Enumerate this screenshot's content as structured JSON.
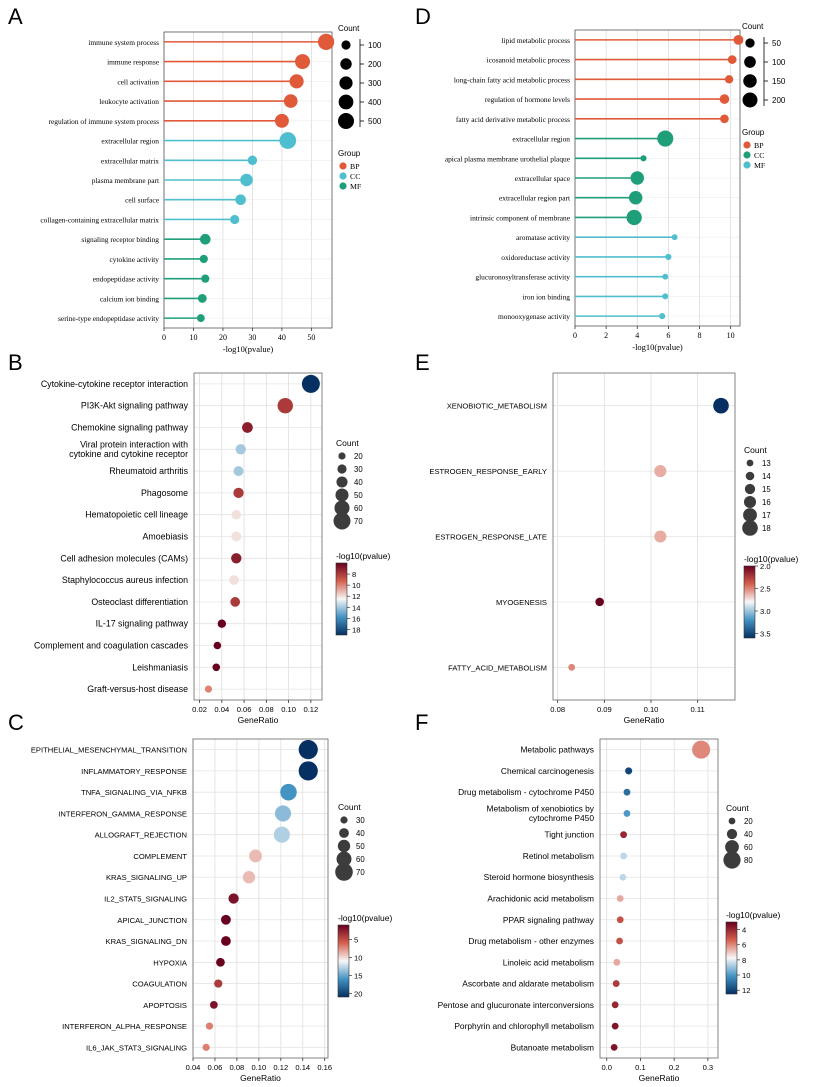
{
  "figure": {
    "panels": [
      "A",
      "B",
      "C",
      "D",
      "E",
      "F"
    ]
  },
  "chart_data": [
    {
      "panel": "A",
      "type": "lollipop",
      "xlabel": "-log10(pvalue)",
      "xlim": [
        0,
        57
      ],
      "xticks": [
        0,
        10,
        20,
        30,
        40,
        50
      ],
      "categories": [
        "immune system process",
        "immune response",
        "cell activation",
        "leukocyte activation",
        "regulation of immune system process",
        "extracellular region",
        "extracellular matrix",
        "plasma membrane part",
        "cell surface",
        "collagen-containing extracellular matrix",
        "signaling receptor binding",
        "cytokine activity",
        "endopeptidase activity",
        "calcium ion binding",
        "serine-type endopeptidase activity"
      ],
      "values": [
        55,
        47,
        45,
        43,
        40,
        42,
        30,
        28,
        26,
        24,
        14,
        13.5,
        14,
        13,
        12.5
      ],
      "count": [
        520,
        420,
        360,
        330,
        350,
        560,
        110,
        260,
        160,
        100,
        160,
        70,
        70,
        90,
        60
      ],
      "group": [
        "BP",
        "BP",
        "BP",
        "BP",
        "BP",
        "CC",
        "CC",
        "CC",
        "CC",
        "CC",
        "MF",
        "MF",
        "MF",
        "MF",
        "MF"
      ],
      "legend": {
        "count_title": "Count",
        "count_values": [
          100,
          200,
          300,
          400,
          500
        ],
        "group_title": "Group",
        "groups": [
          "BP",
          "CC",
          "MF"
        ],
        "group_colors": [
          "#e05a3a",
          "#4fbfcf",
          "#1f9e7a"
        ]
      }
    },
    {
      "panel": "D",
      "type": "lollipop",
      "xlabel": "-log10(pvalue)",
      "xlim": [
        0,
        10.6
      ],
      "xticks": [
        0,
        2,
        4,
        6,
        8,
        10
      ],
      "categories": [
        "lipid metabolic process",
        "icosanoid metabolic process",
        "long-chain fatty acid metabolic process",
        "regulation of hormone levels",
        "fatty acid derivative metabolic process",
        "extracellular region",
        "apical plasma membrane urothelial plaque",
        "extracellular space",
        "extracellular region part",
        "intrinsic component of membrane",
        "aromatase activity",
        "oxidoreductase activity",
        "glucuronosyltransferase activity",
        "iron ion binding",
        "monooxygenase activity"
      ],
      "values": [
        10.5,
        10.1,
        9.9,
        9.6,
        9.6,
        5.8,
        4.4,
        4.0,
        3.9,
        3.8,
        6.4,
        6.0,
        5.8,
        5.8,
        5.6
      ],
      "count": [
        60,
        40,
        35,
        55,
        40,
        240,
        10,
        150,
        150,
        210,
        8,
        10,
        8,
        9,
        10
      ],
      "group": [
        "BP",
        "BP",
        "BP",
        "BP",
        "BP",
        "CC",
        "CC",
        "CC",
        "CC",
        "CC",
        "MF",
        "MF",
        "MF",
        "MF",
        "MF"
      ],
      "legend": {
        "count_title": "Count",
        "count_values": [
          50,
          100,
          150,
          200
        ],
        "group_title": "Group",
        "groups": [
          "BP",
          "CC",
          "MF"
        ],
        "group_colors": [
          "#e05a3a",
          "#1f9e7a",
          "#4fbfcf"
        ]
      }
    },
    {
      "panel": "B",
      "type": "scatter",
      "xlabel": "GeneRatio",
      "xlim": [
        0.015,
        0.13
      ],
      "xticks": [
        0.02,
        0.04,
        0.06,
        0.08,
        0.1,
        0.12
      ],
      "xtick_labels": [
        "0.02",
        "0.04",
        "0.06",
        "0.08",
        "0.10",
        "0.12"
      ],
      "categories": [
        "Cytokine-cytokine receptor interaction",
        "PI3K-Akt signaling pathway",
        "Chemokine signaling pathway",
        "Viral protein interaction with\ncytokine and cytokine receptor",
        "Rheumatoid arthritis",
        "Phagosome",
        "Hematopoietic cell lineage",
        "Amoebiasis",
        "Cell adhesion molecules (CAMs)",
        "Staphylococcus aureus infection",
        "Osteoclast differentiation",
        "IL-17 signaling pathway",
        "Complement and coagulation cascades",
        "Leishmaniasis",
        "Graft-versus-host disease"
      ],
      "values": [
        0.12,
        0.097,
        0.063,
        0.057,
        0.055,
        0.055,
        0.053,
        0.053,
        0.053,
        0.051,
        0.052,
        0.04,
        0.036,
        0.035,
        0.028
      ],
      "count": [
        75,
        62,
        38,
        36,
        34,
        36,
        32,
        34,
        36,
        33,
        33,
        26,
        22,
        22,
        18
      ],
      "color_value": [
        19,
        8,
        7,
        14,
        14,
        8,
        12,
        12,
        7,
        12,
        8,
        6,
        6,
        6,
        10
      ],
      "legend": {
        "count_title": "Count",
        "count_values": [
          20,
          30,
          40,
          50,
          60,
          70
        ],
        "color_title": "-log10(pvalue)",
        "color_range": [
          6,
          19
        ],
        "color_ticks": [
          8,
          10,
          12,
          14,
          16,
          18
        ]
      }
    },
    {
      "panel": "E",
      "type": "scatter",
      "xlabel": "GeneRatio",
      "xlim": [
        0.079,
        0.118
      ],
      "xticks": [
        0.08,
        0.09,
        0.1,
        0.11
      ],
      "xtick_labels": [
        "0.08",
        "0.09",
        "0.10",
        "0.11"
      ],
      "categories": [
        "XENOBIOTIC_METABOLISM",
        "ESTROGEN_RESPONSE_EARLY",
        "ESTROGEN_RESPONSE_LATE",
        "MYOGENESIS",
        "FATTY_ACID_METABOLISM"
      ],
      "values": [
        0.115,
        0.102,
        0.102,
        0.089,
        0.083
      ],
      "count": [
        18,
        16,
        16,
        14,
        13
      ],
      "color_value": [
        3.6,
        2.6,
        2.6,
        2.0,
        2.5
      ],
      "legend": {
        "count_title": "Count",
        "count_values": [
          13,
          14,
          15,
          16,
          17,
          18
        ],
        "color_title": "-log10(pvalue)",
        "color_range": [
          2.0,
          3.6
        ],
        "color_ticks": [
          2.0,
          2.5,
          3.0,
          3.5
        ],
        "color_tick_labels": [
          "2.0",
          "2.5",
          "3.0",
          "3.5"
        ]
      }
    },
    {
      "panel": "C",
      "type": "scatter",
      "xlabel": "GeneRatio",
      "xlim": [
        0.04,
        0.163
      ],
      "xticks": [
        0.04,
        0.06,
        0.08,
        0.1,
        0.12,
        0.14,
        0.16
      ],
      "xtick_labels": [
        "0.04",
        "0.06",
        "0.08",
        "0.10",
        "0.12",
        "0.14",
        "0.16"
      ],
      "categories": [
        "EPITHELIAL_MESENCHYMAL_TRANSITION",
        "INFLAMMATORY_RESPONSE",
        "TNFA_SIGNALING_VIA_NFKB",
        "INTERFERON_GAMMA_RESPONSE",
        "ALLOGRAFT_REJECTION",
        "COMPLEMENT",
        "KRAS_SIGNALING_UP",
        "IL2_STAT5_SIGNALING",
        "APICAL_JUNCTION",
        "KRAS_SIGNALING_DN",
        "HYPOXIA",
        "COAGULATION",
        "APOPTOSIS",
        "INTERFERON_ALPHA_RESPONSE",
        "IL6_JAK_STAT3_SIGNALING"
      ],
      "values": [
        0.145,
        0.145,
        0.127,
        0.122,
        0.121,
        0.097,
        0.091,
        0.077,
        0.07,
        0.07,
        0.065,
        0.063,
        0.059,
        0.055,
        0.052
      ],
      "count": [
        78,
        78,
        66,
        64,
        64,
        52,
        50,
        42,
        40,
        40,
        36,
        34,
        32,
        30,
        29
      ],
      "color_value": [
        21,
        21,
        16,
        14,
        13,
        9,
        9,
        2,
        1,
        1,
        1,
        4,
        2,
        7,
        7
      ],
      "legend": {
        "count_title": "Count",
        "count_values": [
          30,
          40,
          50,
          60,
          70
        ],
        "color_title": "-log10(pvalue)",
        "color_range": [
          1,
          21
        ],
        "color_ticks": [
          5,
          10,
          15,
          20
        ]
      }
    },
    {
      "panel": "F",
      "type": "scatter",
      "xlabel": "GeneRatio",
      "xlim": [
        -0.02,
        0.33
      ],
      "xticks": [
        0.0,
        0.1,
        0.2,
        0.3
      ],
      "xtick_labels": [
        "0.0",
        "0.1",
        "0.2",
        "0.3"
      ],
      "categories": [
        "Metabolic pathways",
        "Chemical carcinogenesis",
        "Drug metabolism - cytochrome P450",
        "Metabolism of xenobiotics by\ncytochrome P450",
        "Tight junction",
        "Retinol metabolism",
        "Steroid hormone biosynthesis",
        "Arachidonic acid metabolism",
        "PPAR signaling pathway",
        "Drug metabolism - other enzymes",
        "Linoleic acid metabolism",
        "Ascorbate and aldarate metabolism",
        "Pentose and glucuronate interconversions",
        "Porphyrin and chlorophyll metabolism",
        "Butanoate metabolism"
      ],
      "values": [
        0.28,
        0.065,
        0.06,
        0.06,
        0.05,
        0.05,
        0.048,
        0.04,
        0.04,
        0.038,
        0.03,
        0.028,
        0.025,
        0.025,
        0.022
      ],
      "count": [
        85,
        22,
        20,
        20,
        18,
        16,
        16,
        14,
        14,
        13,
        10,
        9,
        8,
        8,
        7
      ],
      "color_value": [
        6,
        12,
        11,
        10,
        4,
        8.5,
        8.5,
        6.5,
        5,
        5,
        6.5,
        4.5,
        4,
        3.5,
        3.5
      ],
      "legend": {
        "count_title": "Count",
        "count_values": [
          20,
          40,
          60,
          80
        ],
        "color_title": "-log10(pvalue)",
        "color_range": [
          3,
          12.5
        ],
        "color_ticks": [
          4,
          6,
          8,
          10,
          12
        ]
      }
    }
  ]
}
